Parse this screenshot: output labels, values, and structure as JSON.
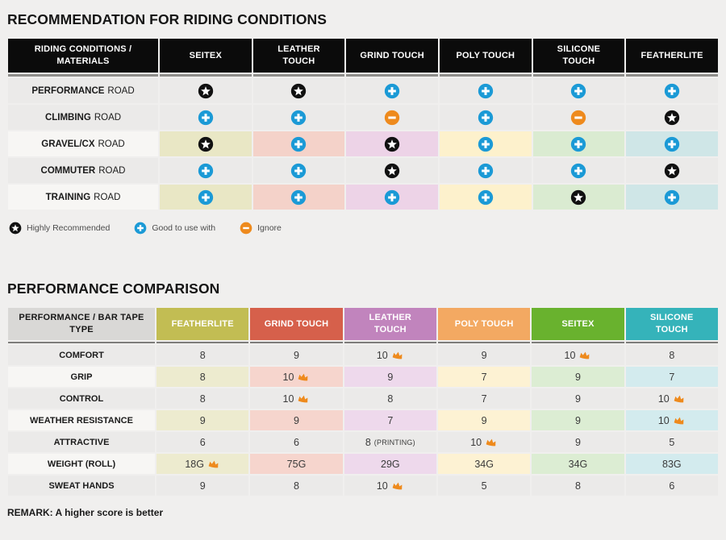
{
  "page": {
    "background": "#f0efee"
  },
  "icons": {
    "star_circle": "#111111",
    "plus_circle": "#1b9ad6",
    "minus_circle": "#ee8a1d",
    "crown": "#ee8a1d"
  },
  "table1": {
    "title": "RECOMMENDATION FOR RIDING CONDITIONS",
    "header_label": "RIDING CONDITIONS / MATERIALS",
    "columns": [
      "SEITEX",
      "LEATHER TOUCH",
      "GRIND TOUCH",
      "POLY TOUCH",
      "SILICONE TOUCH",
      "FEATHERLITE"
    ],
    "column_tints": [
      "#e9e7c5",
      "#f4d2c9",
      "#edd3e7",
      "#fdf1cc",
      "#daebd1",
      "#cfe6e7"
    ],
    "tinted_label_bg": "#f7f6f4",
    "rows": [
      {
        "label_strong": "PERFORMANCE",
        "label_rest": "ROAD",
        "tinted": false,
        "cells": [
          "star",
          "star",
          "plus",
          "plus",
          "plus",
          "plus"
        ]
      },
      {
        "label_strong": "CLIMBING",
        "label_rest": "ROAD",
        "tinted": false,
        "cells": [
          "plus",
          "plus",
          "minus",
          "plus",
          "minus",
          "star"
        ]
      },
      {
        "label_strong": "GRAVEL/CX",
        "label_rest": "ROAD",
        "tinted": true,
        "cells": [
          "star",
          "plus",
          "star",
          "plus",
          "plus",
          "plus"
        ]
      },
      {
        "label_strong": "COMMUTER",
        "label_rest": "ROAD",
        "tinted": false,
        "cells": [
          "plus",
          "plus",
          "star",
          "plus",
          "plus",
          "star"
        ]
      },
      {
        "label_strong": "TRAINING",
        "label_rest": "ROAD",
        "tinted": true,
        "cells": [
          "plus",
          "plus",
          "plus",
          "plus",
          "star",
          "plus"
        ]
      }
    ],
    "legend": [
      {
        "icon": "star",
        "label": "Highly Recommended"
      },
      {
        "icon": "plus",
        "label": "Good to use with"
      },
      {
        "icon": "minus",
        "label": "Ignore"
      }
    ]
  },
  "table2": {
    "title": "PERFORMANCE COMPARISON",
    "header_label": "PERFORMANCE / BAR TAPE TYPE",
    "columns": [
      {
        "label": "FEATHERLITE",
        "color": "#c2bd53",
        "tint": "#edebcf"
      },
      {
        "label": "GRIND TOUCH",
        "color": "#d6604b",
        "tint": "#f6d5cd"
      },
      {
        "label": "LEATHER TOUCH",
        "color": "#c184bd",
        "tint": "#eed9ec"
      },
      {
        "label": "POLY TOUCH",
        "color": "#f3a962",
        "tint": "#fdf2d3"
      },
      {
        "label": "SEITEX",
        "color": "#69b22e",
        "tint": "#dcedd3"
      },
      {
        "label": "SILICONE TOUCH",
        "color": "#35b3ba",
        "tint": "#d3ebee"
      }
    ],
    "tinted_label_bg": "#f7f6f4",
    "rows": [
      {
        "label": "COMFORT",
        "tinted": false,
        "cells": [
          {
            "v": "8"
          },
          {
            "v": "9"
          },
          {
            "v": "10",
            "crown": true
          },
          {
            "v": "9"
          },
          {
            "v": "10",
            "crown": true
          },
          {
            "v": "8"
          }
        ]
      },
      {
        "label": "GRIP",
        "tinted": true,
        "cells": [
          {
            "v": "8"
          },
          {
            "v": "10",
            "crown": true
          },
          {
            "v": "9"
          },
          {
            "v": "7"
          },
          {
            "v": "9"
          },
          {
            "v": "7"
          }
        ]
      },
      {
        "label": "CONTROL",
        "tinted": false,
        "cells": [
          {
            "v": "8"
          },
          {
            "v": "10",
            "crown": true
          },
          {
            "v": "8"
          },
          {
            "v": "7"
          },
          {
            "v": "9"
          },
          {
            "v": "10",
            "crown": true
          }
        ]
      },
      {
        "label": "WEATHER RESISTANCE",
        "tinted": true,
        "cells": [
          {
            "v": "9"
          },
          {
            "v": "9"
          },
          {
            "v": "7"
          },
          {
            "v": "9"
          },
          {
            "v": "9"
          },
          {
            "v": "10",
            "crown": true
          }
        ]
      },
      {
        "label": "ATTRACTIVE",
        "tinted": false,
        "cells": [
          {
            "v": "6"
          },
          {
            "v": "6"
          },
          {
            "v": "8",
            "suffix": "(PRINTING)"
          },
          {
            "v": "10",
            "crown": true
          },
          {
            "v": "9"
          },
          {
            "v": "5"
          }
        ]
      },
      {
        "label": "WEIGHT (ROLL)",
        "tinted": true,
        "cells": [
          {
            "v": "18G",
            "crown": true
          },
          {
            "v": "75G"
          },
          {
            "v": "29G"
          },
          {
            "v": "34G"
          },
          {
            "v": "34G"
          },
          {
            "v": "83G"
          }
        ]
      },
      {
        "label": "SWEAT HANDS",
        "tinted": false,
        "cells": [
          {
            "v": "9"
          },
          {
            "v": "8"
          },
          {
            "v": "10",
            "crown": true
          },
          {
            "v": "5"
          },
          {
            "v": "8"
          },
          {
            "v": "6"
          }
        ]
      }
    ],
    "remark": "REMARK: A higher score is better"
  }
}
